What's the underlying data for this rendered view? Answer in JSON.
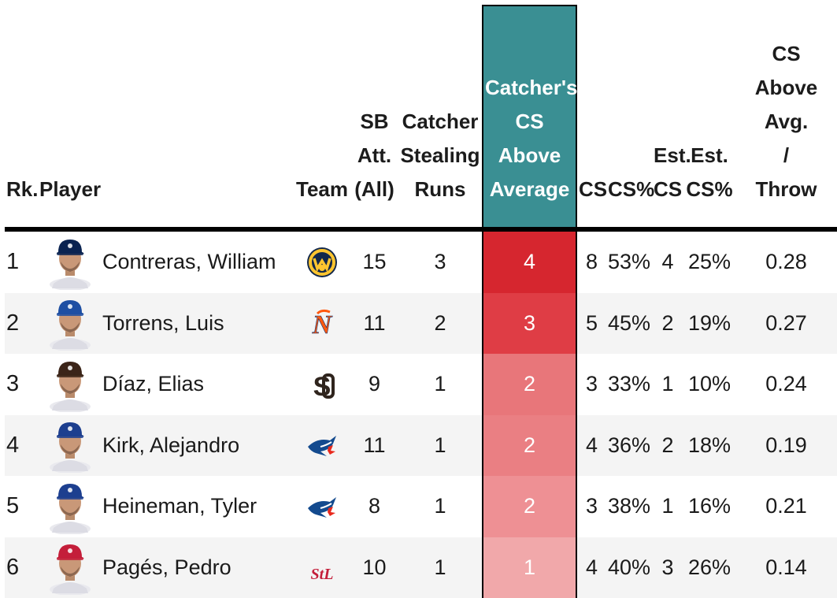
{
  "headers": {
    "rank": "Rk.",
    "player": "Player",
    "team": "Team",
    "sb_att": [
      "SB",
      "Att.",
      "(All)"
    ],
    "csr": [
      "Catcher",
      "Stealing",
      "Runs"
    ],
    "csaa": [
      "Catcher's",
      "CS",
      "Above",
      "Average"
    ],
    "cs": "CS",
    "cs_pct": "CS%",
    "est_cs": [
      "Est.",
      "CS"
    ],
    "est_cs_pct": [
      "Est.",
      "CS%"
    ],
    "per_throw": [
      "CS",
      "Above",
      "Avg.",
      "/",
      "Throw"
    ]
  },
  "colors": {
    "highlight_header": "#3a8f93",
    "csaa_4": "#d6262f",
    "csaa_3": "#df3d45",
    "csaa_2a": "#e8767a",
    "csaa_2b": "#ea7f83",
    "csaa_2c": "#ee9094",
    "csaa_1": "#f1a8aa"
  },
  "rows": [
    {
      "rank": "1",
      "name": "Contreras, William",
      "team_logo": "brewers-logo",
      "sb_att": "15",
      "csr": "3",
      "csaa": "4",
      "cs": "8",
      "cs_pct": "53%",
      "est_cs": "4",
      "est_cs_pct": "25%",
      "per_throw": "0.28",
      "csaa_color": "#d6262f",
      "cap_color": "#0a2351"
    },
    {
      "rank": "2",
      "name": "Torrens, Luis",
      "team_logo": "mets-logo",
      "sb_att": "11",
      "csr": "2",
      "csaa": "3",
      "cs": "5",
      "cs_pct": "45%",
      "est_cs": "2",
      "est_cs_pct": "19%",
      "per_throw": "0.27",
      "csaa_color": "#df3d45",
      "cap_color": "#1e4fa3"
    },
    {
      "rank": "3",
      "name": "Díaz, Elias",
      "team_logo": "padres-logo",
      "sb_att": "9",
      "csr": "1",
      "csaa": "2",
      "cs": "3",
      "cs_pct": "33%",
      "est_cs": "1",
      "est_cs_pct": "10%",
      "per_throw": "0.24",
      "csaa_color": "#e8767a",
      "cap_color": "#3b2418"
    },
    {
      "rank": "4",
      "name": "Kirk, Alejandro",
      "team_logo": "blue-jays-logo",
      "sb_att": "11",
      "csr": "1",
      "csaa": "2",
      "cs": "4",
      "cs_pct": "36%",
      "est_cs": "2",
      "est_cs_pct": "18%",
      "per_throw": "0.19",
      "csaa_color": "#ea7f83",
      "cap_color": "#1d3f8f"
    },
    {
      "rank": "5",
      "name": "Heineman, Tyler",
      "team_logo": "blue-jays-logo",
      "sb_att": "8",
      "csr": "1",
      "csaa": "2",
      "cs": "3",
      "cs_pct": "38%",
      "est_cs": "1",
      "est_cs_pct": "16%",
      "per_throw": "0.21",
      "csaa_color": "#ee9094",
      "cap_color": "#1d3f8f"
    },
    {
      "rank": "6",
      "name": "Pagés, Pedro",
      "team_logo": "cardinals-logo",
      "sb_att": "10",
      "csr": "1",
      "csaa": "1",
      "cs": "4",
      "cs_pct": "40%",
      "est_cs": "3",
      "est_cs_pct": "26%",
      "per_throw": "0.14",
      "csaa_color": "#f1a8aa",
      "cap_color": "#c41e3a"
    }
  ]
}
